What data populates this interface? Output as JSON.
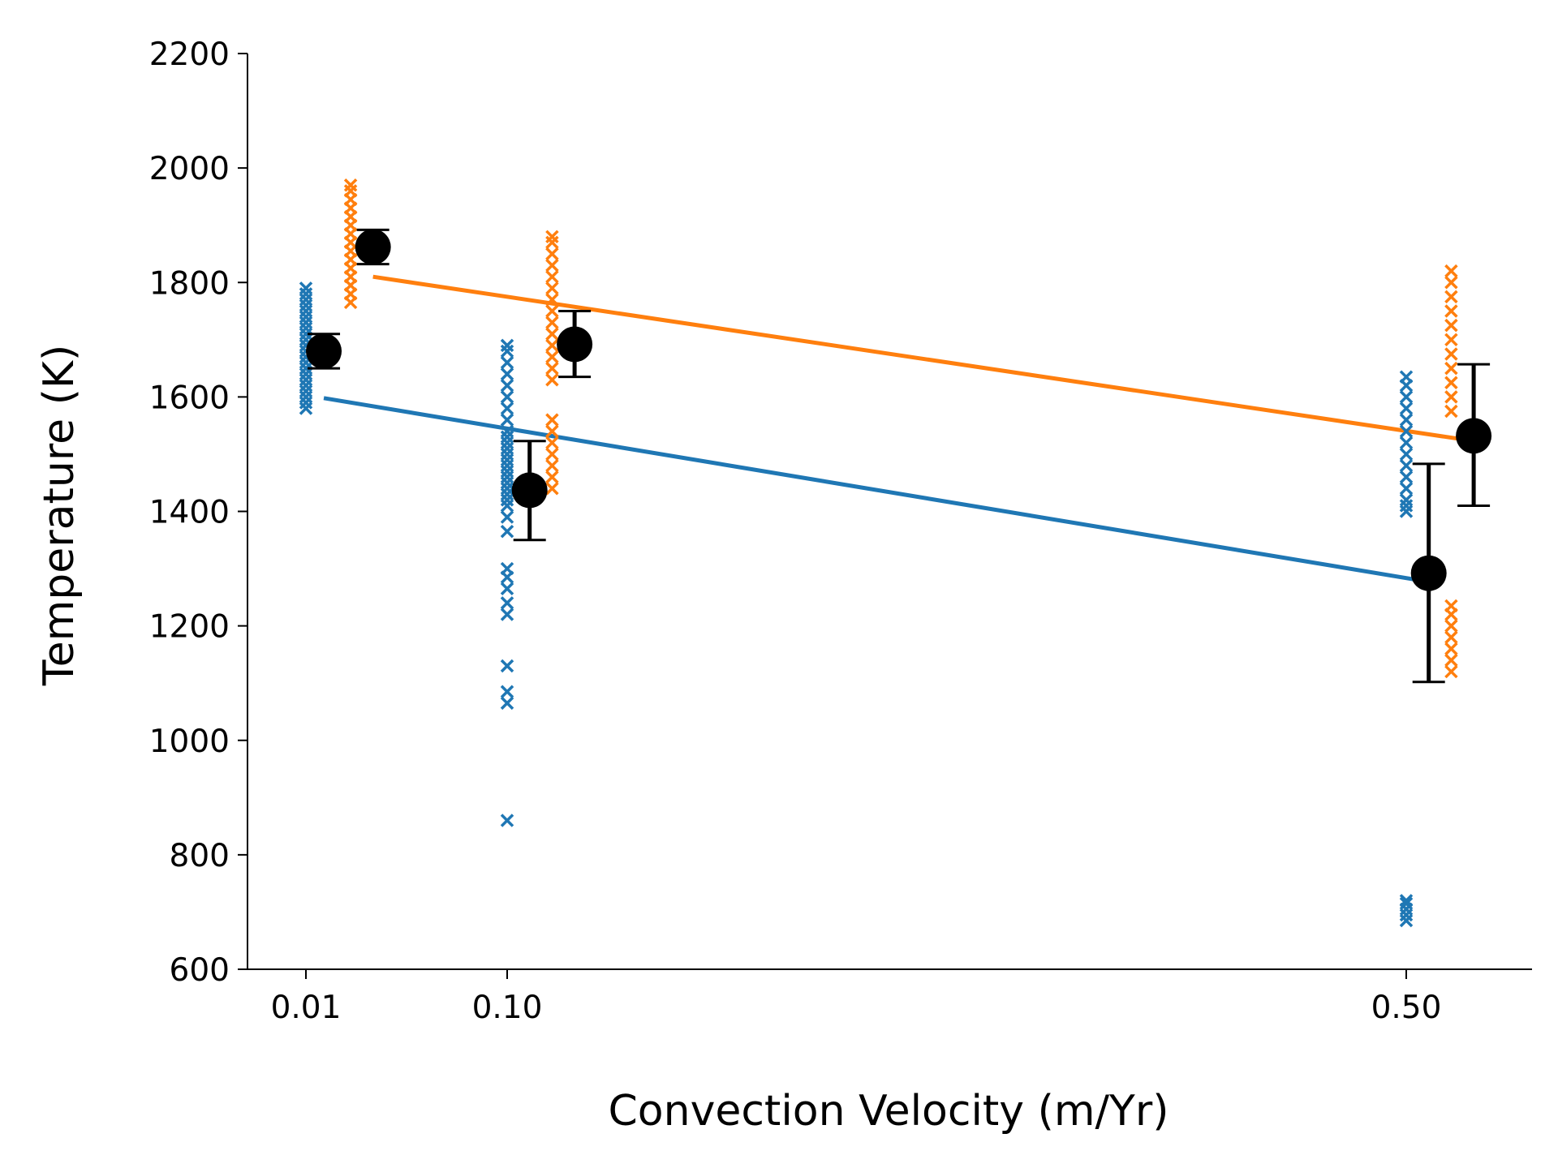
{
  "chart_data": {
    "type": "scatter",
    "title": "",
    "xlabel": "Convection Velocity (m/Yr)",
    "ylabel": "Temperature (K)",
    "x_tick_labels": [
      "0.01",
      "0.10",
      "0.50"
    ],
    "y_tick_labels": [
      "600",
      "800",
      "1000",
      "1200",
      "1400",
      "1600",
      "1800",
      "2000",
      "2200"
    ],
    "ylim": [
      600,
      2200
    ],
    "y_ticks": [
      600,
      800,
      1000,
      1200,
      1400,
      1600,
      1800,
      2000,
      2200
    ],
    "x_ticks": [
      0.01,
      0.1,
      0.5
    ],
    "grid": false,
    "legend": "none",
    "colors": {
      "blue": "#1f77b4",
      "orange": "#ff7f0e",
      "black": "#000000"
    },
    "series": [
      {
        "marker": "x",
        "color": "#1f77b4",
        "x": 0.01,
        "y": [
          1580,
          1590,
          1600,
          1610,
          1620,
          1630,
          1640,
          1650,
          1660,
          1670,
          1680,
          1690,
          1700,
          1710,
          1720,
          1730,
          1740,
          1750,
          1760,
          1770,
          1780,
          1790
        ]
      },
      {
        "marker": "x",
        "color": "#1f77b4",
        "x": 0.1,
        "y": [
          860,
          1065,
          1085,
          1130,
          1220,
          1240,
          1265,
          1285,
          1300,
          1365,
          1390,
          1410,
          1420,
          1430,
          1440,
          1450,
          1460,
          1470,
          1480,
          1490,
          1500,
          1510,
          1520,
          1530,
          1540,
          1560,
          1580,
          1600,
          1620,
          1640,
          1660,
          1680,
          1690
        ]
      },
      {
        "marker": "x",
        "color": "#1f77b4",
        "x": 0.5,
        "y": [
          685,
          695,
          705,
          715,
          720,
          1400,
          1410,
          1420,
          1440,
          1460,
          1480,
          1500,
          1520,
          1540,
          1560,
          1580,
          1600,
          1620,
          1635
        ]
      },
      {
        "marker": "x",
        "color": "#ff7f0e",
        "x": 0.03,
        "y": [
          1765,
          1780,
          1795,
          1810,
          1825,
          1840,
          1855,
          1870,
          1885,
          1900,
          1915,
          1930,
          1945,
          1960,
          1970
        ]
      },
      {
        "marker": "x",
        "color": "#ff7f0e",
        "x": 0.12,
        "y": [
          1440,
          1460,
          1480,
          1500,
          1520,
          1540,
          1560,
          1630,
          1650,
          1670,
          1690,
          1710,
          1730,
          1750,
          1770,
          1790,
          1810,
          1830,
          1850,
          1870,
          1880
        ]
      },
      {
        "marker": "x",
        "color": "#ff7f0e",
        "x": 0.52,
        "y": [
          1120,
          1140,
          1160,
          1180,
          1200,
          1220,
          1235,
          1575,
          1600,
          1625,
          1650,
          1675,
          1700,
          1725,
          1750,
          1775,
          1800,
          1820
        ]
      }
    ],
    "errorbars": [
      {
        "x": 0.018,
        "y": 1680,
        "yerr_low": 1650,
        "yerr_high": 1710
      },
      {
        "x": 0.04,
        "y": 1862,
        "yerr_low": 1832,
        "yerr_high": 1892
      },
      {
        "x": 0.11,
        "y": 1437,
        "yerr_low": 1350,
        "yerr_high": 1523
      },
      {
        "x": 0.13,
        "y": 1692,
        "yerr_low": 1635,
        "yerr_high": 1750
      },
      {
        "x": 0.51,
        "y": 1292,
        "yerr_low": 1102,
        "yerr_high": 1483
      },
      {
        "x": 0.53,
        "y": 1532,
        "yerr_low": 1410,
        "yerr_high": 1657
      }
    ],
    "fit_lines": [
      {
        "color": "#1f77b4",
        "x": [
          0.018,
          0.51
        ],
        "y": [
          1598,
          1277
        ]
      },
      {
        "color": "#ff7f0e",
        "x": [
          0.04,
          0.53
        ],
        "y": [
          1810,
          1523
        ]
      }
    ]
  }
}
